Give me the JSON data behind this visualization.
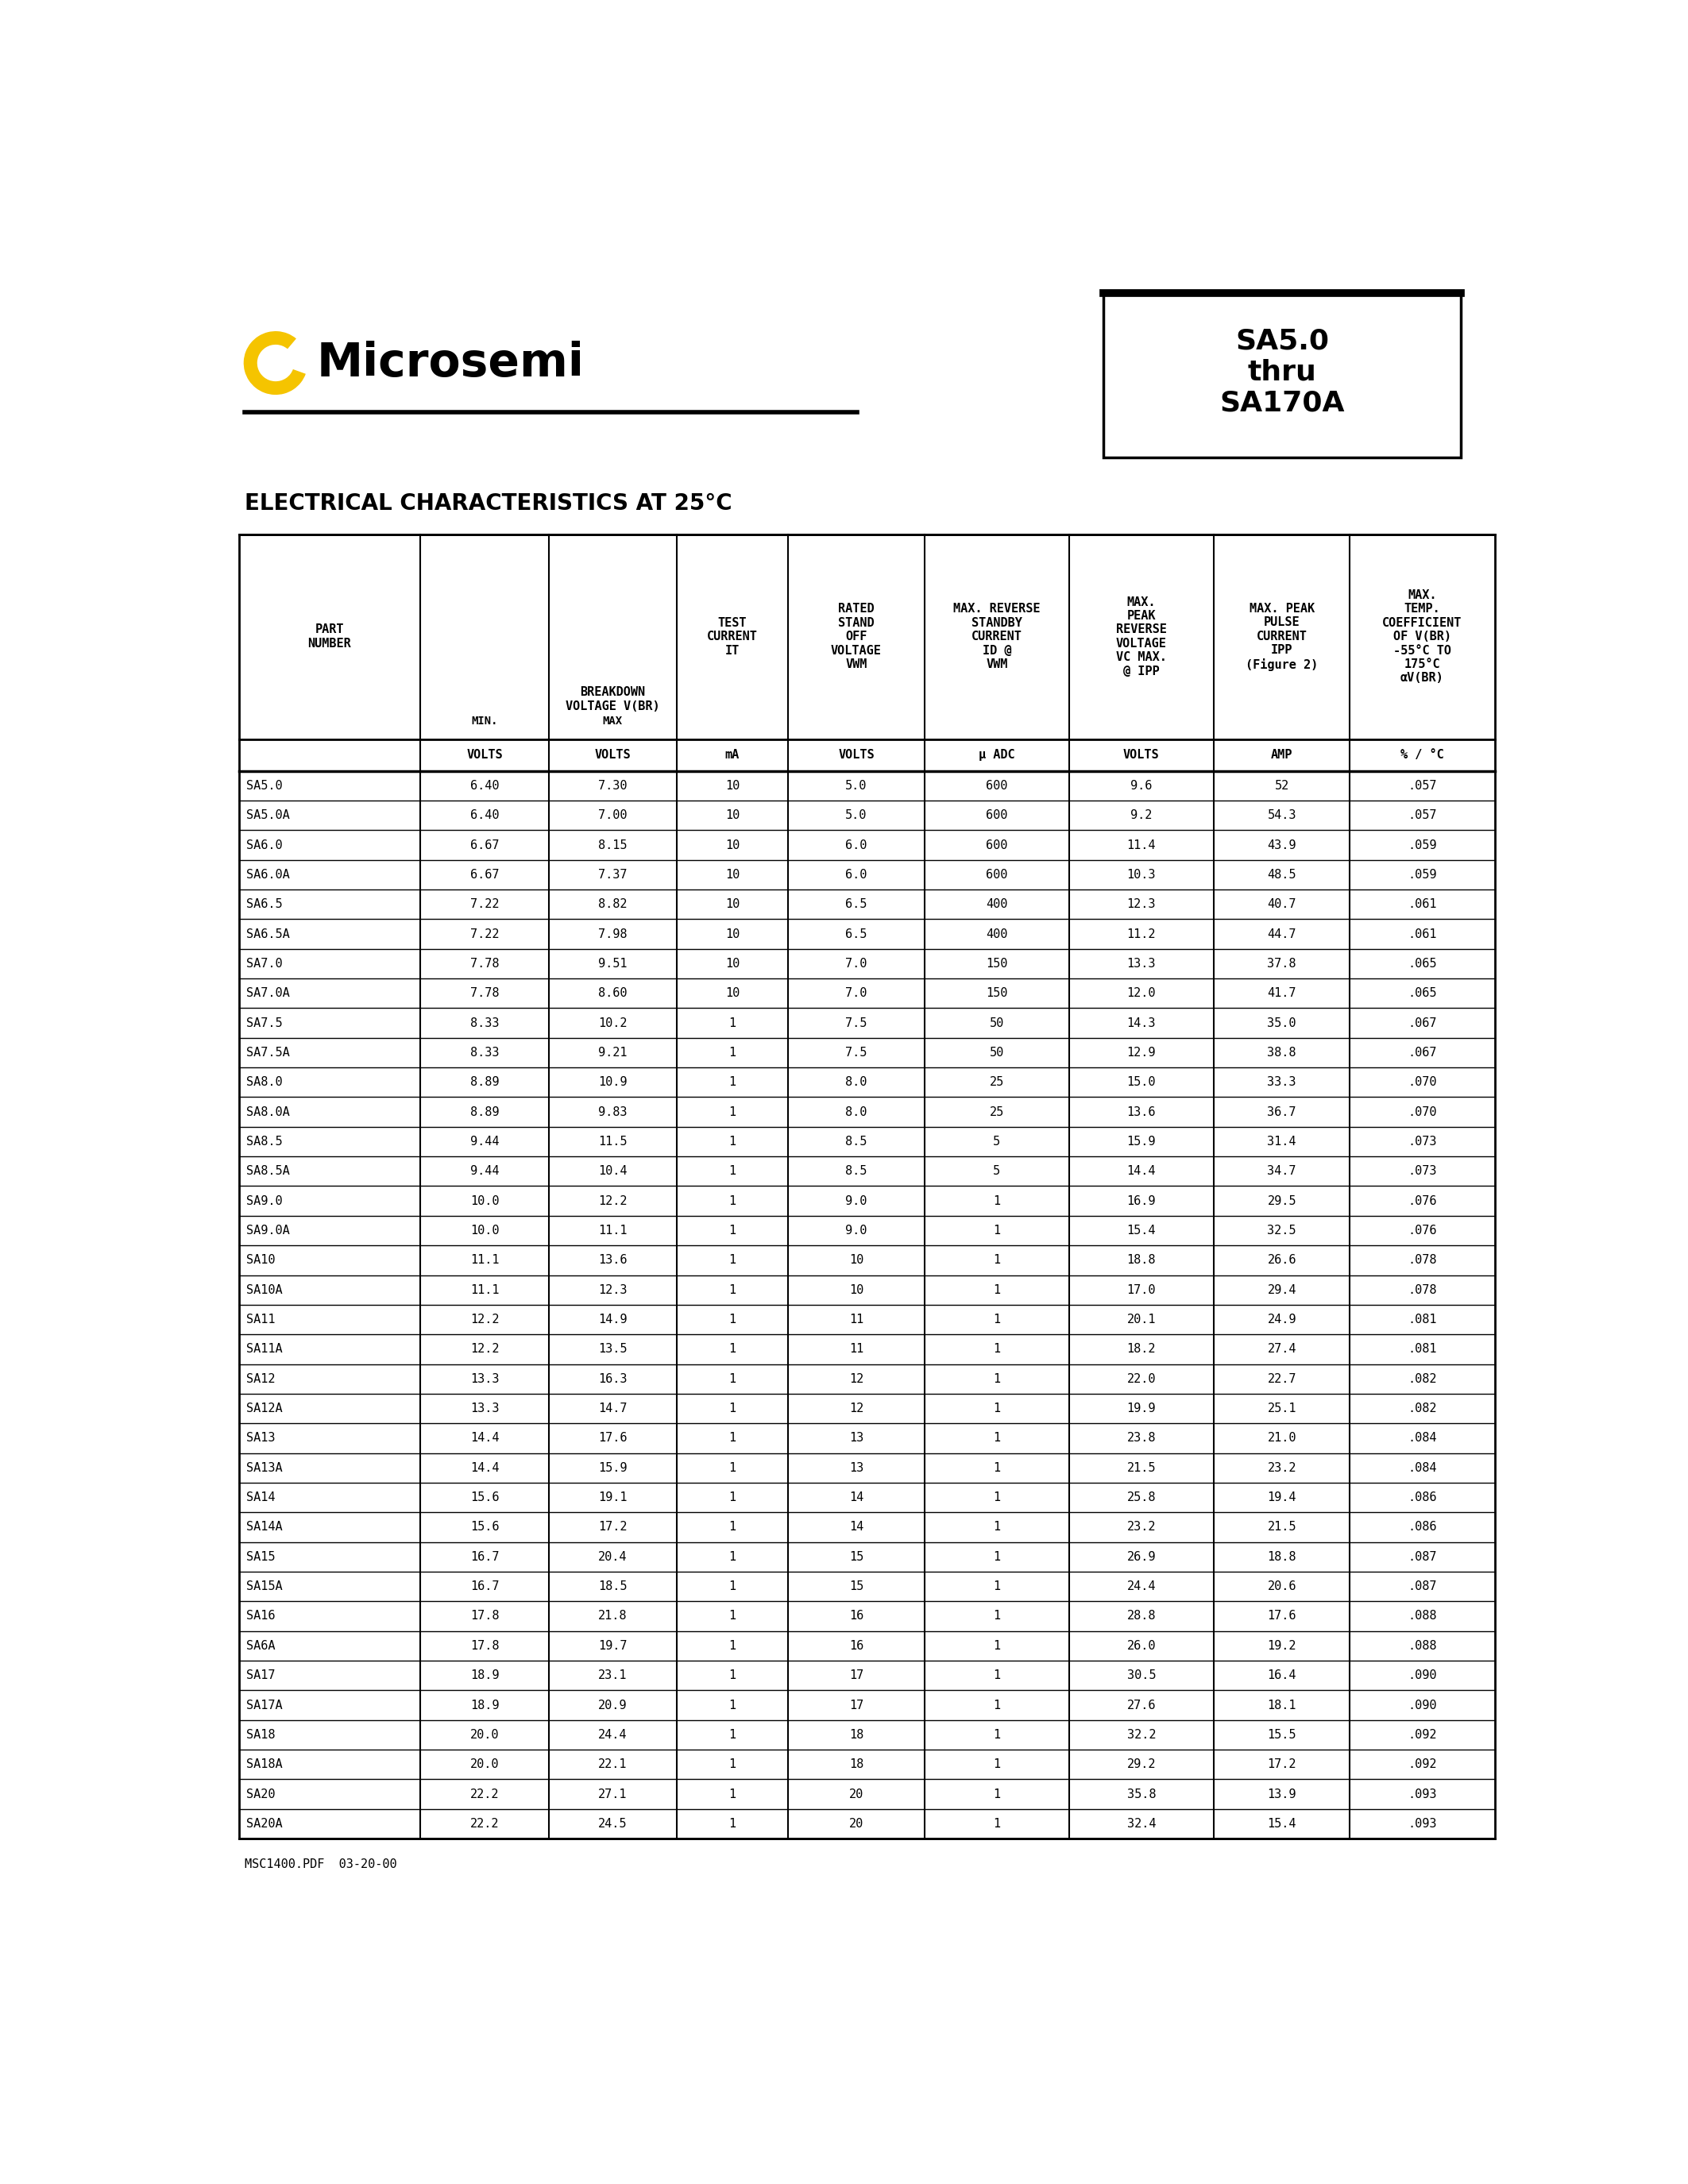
{
  "title": "SA5.0\nthru\nSA170A",
  "logo_text": "Microsemi",
  "section_title": "ELECTRICAL CHARACTERISTICS AT 25°C",
  "footer": "MSC1400.PDF  03-20-00",
  "rows": [
    [
      "SA5.0",
      "6.40",
      "7.30",
      "10",
      "5.0",
      "600",
      "9.6",
      "52",
      ".057"
    ],
    [
      "SA5.0A",
      "6.40",
      "7.00",
      "10",
      "5.0",
      "600",
      "9.2",
      "54.3",
      ".057"
    ],
    [
      "SA6.0",
      "6.67",
      "8.15",
      "10",
      "6.0",
      "600",
      "11.4",
      "43.9",
      ".059"
    ],
    [
      "SA6.0A",
      "6.67",
      "7.37",
      "10",
      "6.0",
      "600",
      "10.3",
      "48.5",
      ".059"
    ],
    [
      "SA6.5",
      "7.22",
      "8.82",
      "10",
      "6.5",
      "400",
      "12.3",
      "40.7",
      ".061"
    ],
    [
      "SA6.5A",
      "7.22",
      "7.98",
      "10",
      "6.5",
      "400",
      "11.2",
      "44.7",
      ".061"
    ],
    [
      "SA7.0",
      "7.78",
      "9.51",
      "10",
      "7.0",
      "150",
      "13.3",
      "37.8",
      ".065"
    ],
    [
      "SA7.0A",
      "7.78",
      "8.60",
      "10",
      "7.0",
      "150",
      "12.0",
      "41.7",
      ".065"
    ],
    [
      "SA7.5",
      "8.33",
      "10.2",
      "1",
      "7.5",
      "50",
      "14.3",
      "35.0",
      ".067"
    ],
    [
      "SA7.5A",
      "8.33",
      "9.21",
      "1",
      "7.5",
      "50",
      "12.9",
      "38.8",
      ".067"
    ],
    [
      "SA8.0",
      "8.89",
      "10.9",
      "1",
      "8.0",
      "25",
      "15.0",
      "33.3",
      ".070"
    ],
    [
      "SA8.0A",
      "8.89",
      "9.83",
      "1",
      "8.0",
      "25",
      "13.6",
      "36.7",
      ".070"
    ],
    [
      "SA8.5",
      "9.44",
      "11.5",
      "1",
      "8.5",
      "5",
      "15.9",
      "31.4",
      ".073"
    ],
    [
      "SA8.5A",
      "9.44",
      "10.4",
      "1",
      "8.5",
      "5",
      "14.4",
      "34.7",
      ".073"
    ],
    [
      "SA9.0",
      "10.0",
      "12.2",
      "1",
      "9.0",
      "1",
      "16.9",
      "29.5",
      ".076"
    ],
    [
      "SA9.0A",
      "10.0",
      "11.1",
      "1",
      "9.0",
      "1",
      "15.4",
      "32.5",
      ".076"
    ],
    [
      "SA10",
      "11.1",
      "13.6",
      "1",
      "10",
      "1",
      "18.8",
      "26.6",
      ".078"
    ],
    [
      "SA10A",
      "11.1",
      "12.3",
      "1",
      "10",
      "1",
      "17.0",
      "29.4",
      ".078"
    ],
    [
      "SA11",
      "12.2",
      "14.9",
      "1",
      "11",
      "1",
      "20.1",
      "24.9",
      ".081"
    ],
    [
      "SA11A",
      "12.2",
      "13.5",
      "1",
      "11",
      "1",
      "18.2",
      "27.4",
      ".081"
    ],
    [
      "SA12",
      "13.3",
      "16.3",
      "1",
      "12",
      "1",
      "22.0",
      "22.7",
      ".082"
    ],
    [
      "SA12A",
      "13.3",
      "14.7",
      "1",
      "12",
      "1",
      "19.9",
      "25.1",
      ".082"
    ],
    [
      "SA13",
      "14.4",
      "17.6",
      "1",
      "13",
      "1",
      "23.8",
      "21.0",
      ".084"
    ],
    [
      "SA13A",
      "14.4",
      "15.9",
      "1",
      "13",
      "1",
      "21.5",
      "23.2",
      ".084"
    ],
    [
      "SA14",
      "15.6",
      "19.1",
      "1",
      "14",
      "1",
      "25.8",
      "19.4",
      ".086"
    ],
    [
      "SA14A",
      "15.6",
      "17.2",
      "1",
      "14",
      "1",
      "23.2",
      "21.5",
      ".086"
    ],
    [
      "SA15",
      "16.7",
      "20.4",
      "1",
      "15",
      "1",
      "26.9",
      "18.8",
      ".087"
    ],
    [
      "SA15A",
      "16.7",
      "18.5",
      "1",
      "15",
      "1",
      "24.4",
      "20.6",
      ".087"
    ],
    [
      "SA16",
      "17.8",
      "21.8",
      "1",
      "16",
      "1",
      "28.8",
      "17.6",
      ".088"
    ],
    [
      "SA6A",
      "17.8",
      "19.7",
      "1",
      "16",
      "1",
      "26.0",
      "19.2",
      ".088"
    ],
    [
      "SA17",
      "18.9",
      "23.1",
      "1",
      "17",
      "1",
      "30.5",
      "16.4",
      ".090"
    ],
    [
      "SA17A",
      "18.9",
      "20.9",
      "1",
      "17",
      "1",
      "27.6",
      "18.1",
      ".090"
    ],
    [
      "SA18",
      "20.0",
      "24.4",
      "1",
      "18",
      "1",
      "32.2",
      "15.5",
      ".092"
    ],
    [
      "SA18A",
      "20.0",
      "22.1",
      "1",
      "18",
      "1",
      "29.2",
      "17.2",
      ".092"
    ],
    [
      "SA20",
      "22.2",
      "27.1",
      "1",
      "20",
      "1",
      "35.8",
      "13.9",
      ".093"
    ],
    [
      "SA20A",
      "22.2",
      "24.5",
      "1",
      "20",
      "1",
      "32.4",
      "15.4",
      ".093"
    ]
  ],
  "bg_color": "#ffffff",
  "text_color": "#000000",
  "logo_color": "#f5c400"
}
